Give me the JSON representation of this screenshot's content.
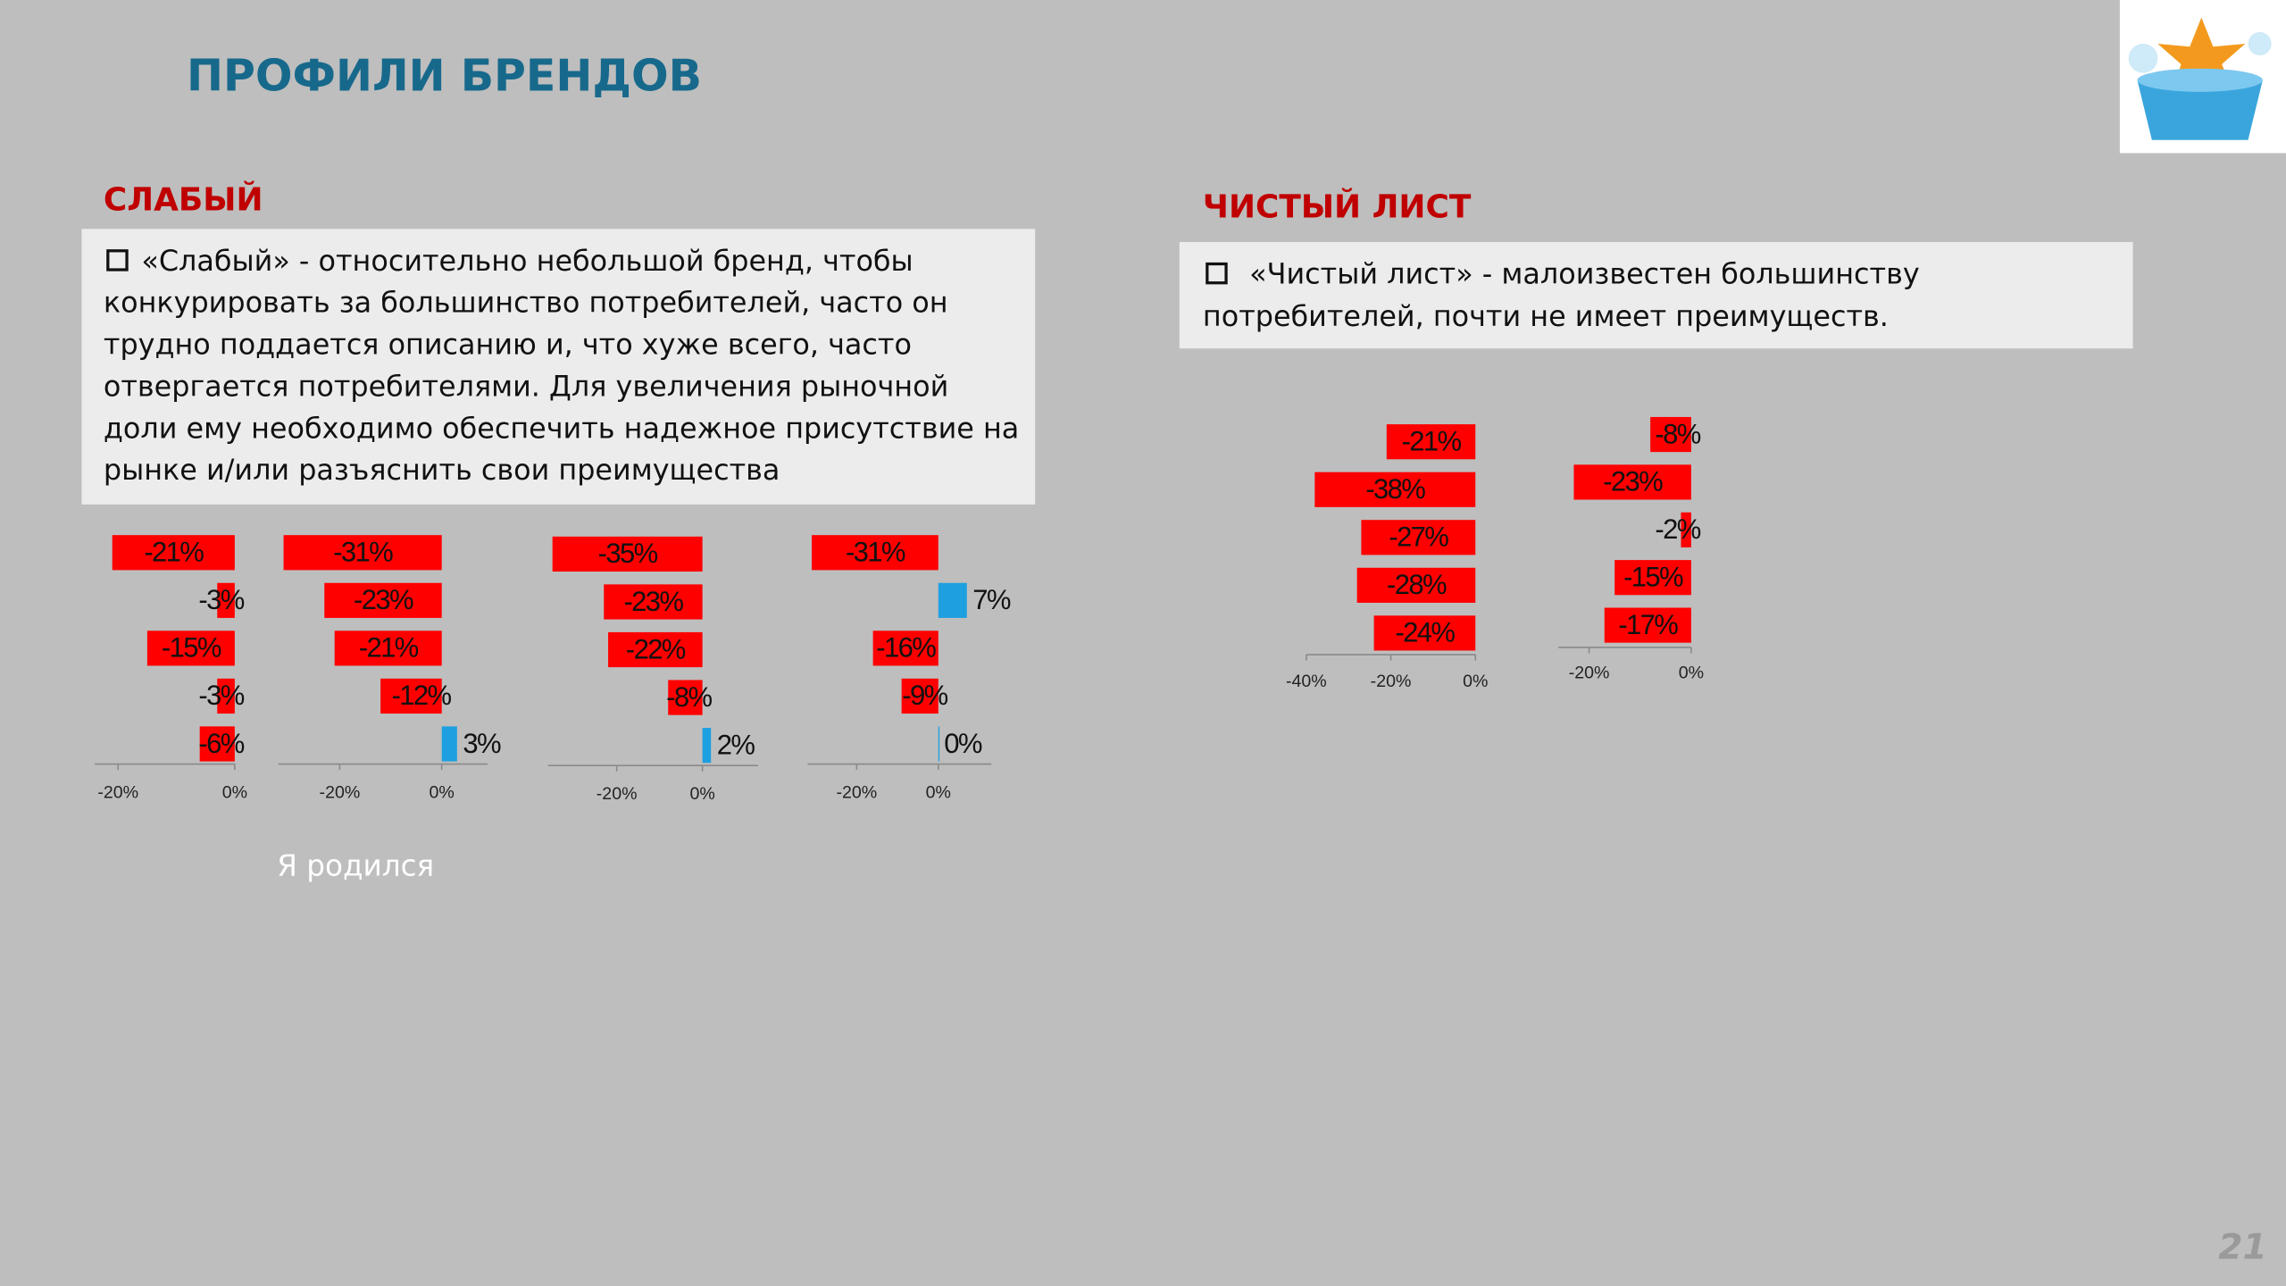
{
  "header": {
    "title": "ПРОФИЛИ БРЕНДОВ"
  },
  "sections": [
    {
      "heading": "СЛАБЫЙ",
      "lines": [
        "«Слабый»  - относительно небольшой бренд, чтобы",
        "конкурировать за большинство потребителей, часто он",
        "трудно поддается описанию и, что хуже всего, часто",
        "отвергается потребителями. Для увеличения рыночной",
        "доли ему необходимо обеспечить надежное присутствие на",
        "рынке и/или разъяснить свои преимущества"
      ]
    },
    {
      "heading": "ЧИСТЫЙ ЛИСТ",
      "lines": [
        "«Чистый лист» - малоизвестен большинству",
        "потребителей, почти не имеет преимуществ."
      ]
    }
  ],
  "caption": "Я родился",
  "page_number": "21",
  "chart_data": [
    {
      "type": "bar",
      "orientation": "horizontal",
      "values": [
        -21,
        -3,
        -15,
        -3,
        -6
      ],
      "value_labels": [
        "-21%",
        "-3%",
        "-15%",
        "-3%",
        "-6%"
      ],
      "color": "#ff0000",
      "positive_color": "#1ea0e0",
      "xlim": [
        -24,
        0
      ],
      "xticks": [
        {
          "value": -20,
          "label": "-20%"
        },
        {
          "value": 0,
          "label": "0%"
        }
      ]
    },
    {
      "type": "bar",
      "orientation": "horizontal",
      "values": [
        -31,
        -23,
        -21,
        -12,
        3
      ],
      "value_labels": [
        "-31%",
        "-23%",
        "-21%",
        "-12%",
        "3%"
      ],
      "color": "#ff0000",
      "positive_color": "#1ea0e0",
      "xlim": [
        -32,
        9
      ],
      "xticks": [
        {
          "value": -20,
          "label": "-20%"
        },
        {
          "value": 0,
          "label": "0%"
        }
      ]
    },
    {
      "type": "bar",
      "orientation": "horizontal",
      "values": [
        -35,
        -23,
        -22,
        -8,
        2
      ],
      "value_labels": [
        "-35%",
        "-23%",
        "-22%",
        "-8%",
        "2%"
      ],
      "color": "#ff0000",
      "positive_color": "#1ea0e0",
      "xlim": [
        -36,
        13
      ],
      "xticks": [
        {
          "value": -20,
          "label": "-20%"
        },
        {
          "value": 0,
          "label": "0%"
        }
      ]
    },
    {
      "type": "bar",
      "orientation": "horizontal",
      "values": [
        -31,
        7,
        -16,
        -9,
        0
      ],
      "value_labels": [
        "-31%",
        "7%",
        "-16%",
        "-9%",
        "0%"
      ],
      "color": "#ff0000",
      "positive_color": "#1ea0e0",
      "xlim": [
        -32,
        13
      ],
      "xticks": [
        {
          "value": -20,
          "label": "-20%"
        },
        {
          "value": 0,
          "label": "0%"
        }
      ]
    },
    {
      "type": "bar",
      "orientation": "horizontal",
      "values": [
        -21,
        -38,
        -27,
        -28,
        -24
      ],
      "value_labels": [
        "-21%",
        "-38%",
        "-27%",
        "-28%",
        "-24%"
      ],
      "color": "#ff0000",
      "positive_color": "#1ea0e0",
      "xlim": [
        -40,
        0
      ],
      "xticks": [
        {
          "value": -40,
          "label": "-40%"
        },
        {
          "value": -20,
          "label": "-20%"
        },
        {
          "value": 0,
          "label": "0%"
        }
      ]
    },
    {
      "type": "bar",
      "orientation": "horizontal",
      "values": [
        -8,
        -23,
        -2,
        -15,
        -17
      ],
      "value_labels": [
        "-8%",
        "-23%",
        "-2%",
        "-15%",
        "-17%"
      ],
      "color": "#ff0000",
      "positive_color": "#1ea0e0",
      "xlim": [
        -26,
        0
      ],
      "xticks": [
        {
          "value": -20,
          "label": "-20%"
        },
        {
          "value": 0,
          "label": "0%"
        }
      ]
    }
  ]
}
